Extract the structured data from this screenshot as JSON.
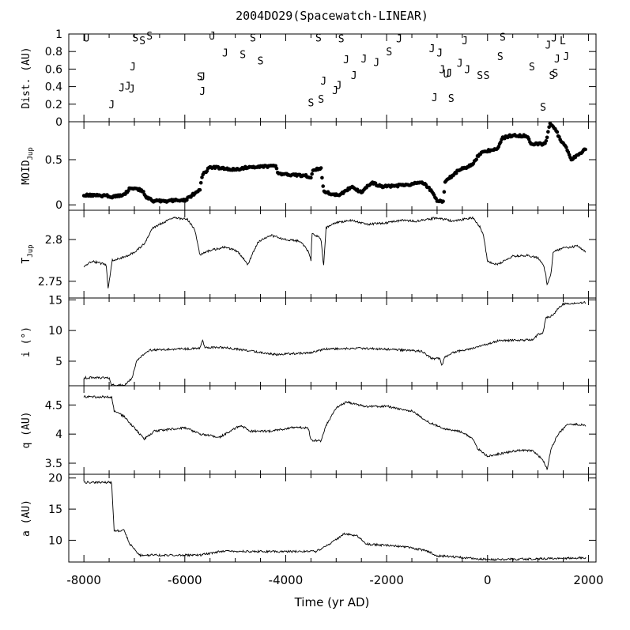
{
  "chart_data": {
    "title": "2004DO29(Spacewatch-LINEAR)",
    "type": "multi-panel",
    "xlabel": "Time (yr AD)",
    "xlim": [
      -8300,
      2150
    ],
    "xticks": [
      -8000,
      -6000,
      -4000,
      -2000,
      0,
      2000
    ],
    "xtick_labels": [
      "-8000",
      "-6000",
      "-4000",
      "-2000",
      "0",
      "2000"
    ],
    "panels": [
      {
        "id": "dist",
        "type": "scatter-text",
        "ylabel": "Dist. (AU)",
        "ylim": [
          0,
          1
        ],
        "yticks": [
          0,
          0.2,
          0.4,
          0.6,
          0.8,
          1
        ],
        "ytick_labels": [
          "0",
          "0.2",
          "0.4",
          "0.6",
          "0.8",
          "1"
        ],
        "points": [
          {
            "t": -7950,
            "d": 0.96,
            "label": "U"
          },
          {
            "t": -7450,
            "d": 0.2,
            "label": "J"
          },
          {
            "t": -7250,
            "d": 0.39,
            "label": "J"
          },
          {
            "t": -7130,
            "d": 0.41,
            "label": "J"
          },
          {
            "t": -7050,
            "d": 0.38,
            "label": "J"
          },
          {
            "t": -7030,
            "d": 0.63,
            "label": "J"
          },
          {
            "t": -6980,
            "d": 0.96,
            "label": "S"
          },
          {
            "t": -6840,
            "d": 0.93,
            "label": "S"
          },
          {
            "t": -6700,
            "d": 0.98,
            "label": "S"
          },
          {
            "t": -5700,
            "d": 0.52,
            "label": "S"
          },
          {
            "t": -5650,
            "d": 0.52,
            "label": "J"
          },
          {
            "t": -5650,
            "d": 0.35,
            "label": "J"
          },
          {
            "t": -5450,
            "d": 0.98,
            "label": "J"
          },
          {
            "t": -5200,
            "d": 0.79,
            "label": "J"
          },
          {
            "t": -4850,
            "d": 0.77,
            "label": "S"
          },
          {
            "t": -4650,
            "d": 0.96,
            "label": "S"
          },
          {
            "t": -4500,
            "d": 0.7,
            "label": "S"
          },
          {
            "t": -3500,
            "d": 0.22,
            "label": "S"
          },
          {
            "t": -3350,
            "d": 0.96,
            "label": "S"
          },
          {
            "t": -3300,
            "d": 0.26,
            "label": "S"
          },
          {
            "t": -3250,
            "d": 0.47,
            "label": "J"
          },
          {
            "t": -3020,
            "d": 0.36,
            "label": "J"
          },
          {
            "t": -2950,
            "d": 0.42,
            "label": "J"
          },
          {
            "t": -2900,
            "d": 0.95,
            "label": "S"
          },
          {
            "t": -2800,
            "d": 0.71,
            "label": "J"
          },
          {
            "t": -2650,
            "d": 0.53,
            "label": "J"
          },
          {
            "t": -2450,
            "d": 0.72,
            "label": "J"
          },
          {
            "t": -2200,
            "d": 0.68,
            "label": "J"
          },
          {
            "t": -1950,
            "d": 0.8,
            "label": "S"
          },
          {
            "t": -1750,
            "d": 0.95,
            "label": "J"
          },
          {
            "t": -1100,
            "d": 0.84,
            "label": "J"
          },
          {
            "t": -1050,
            "d": 0.28,
            "label": "J"
          },
          {
            "t": -950,
            "d": 0.79,
            "label": "J"
          },
          {
            "t": -900,
            "d": 0.6,
            "label": "J"
          },
          {
            "t": -820,
            "d": 0.55,
            "label": "U"
          },
          {
            "t": -760,
            "d": 0.56,
            "label": "J"
          },
          {
            "t": -720,
            "d": 0.27,
            "label": "S"
          },
          {
            "t": -550,
            "d": 0.67,
            "label": "J"
          },
          {
            "t": -450,
            "d": 0.93,
            "label": "J"
          },
          {
            "t": -400,
            "d": 0.6,
            "label": "J"
          },
          {
            "t": -150,
            "d": 0.53,
            "label": "S"
          },
          {
            "t": -20,
            "d": 0.53,
            "label": "S"
          },
          {
            "t": 250,
            "d": 0.75,
            "label": "S"
          },
          {
            "t": 300,
            "d": 0.97,
            "label": "S"
          },
          {
            "t": 880,
            "d": 0.63,
            "label": "S"
          },
          {
            "t": 1100,
            "d": 0.17,
            "label": "S"
          },
          {
            "t": 1200,
            "d": 0.88,
            "label": "J"
          },
          {
            "t": 1280,
            "d": 0.53,
            "label": "S"
          },
          {
            "t": 1320,
            "d": 0.96,
            "label": "J"
          },
          {
            "t": 1340,
            "d": 0.56,
            "label": "S"
          },
          {
            "t": 1380,
            "d": 0.72,
            "label": "J"
          },
          {
            "t": 1490,
            "d": 0.93,
            "label": "L"
          },
          {
            "t": 1560,
            "d": 0.75,
            "label": "J"
          }
        ]
      },
      {
        "id": "moid",
        "type": "scatter",
        "ylabel": "MOID",
        "ylabel_sub": "Jup",
        "ylim": [
          -0.06,
          0.92
        ],
        "yticks": [
          0,
          0.5
        ],
        "ytick_labels": [
          "0",
          "0.5"
        ],
        "knots": [
          [
            -8000,
            0.11
          ],
          [
            -7500,
            0.1
          ],
          [
            -7450,
            0.09
          ],
          [
            -7200,
            0.11
          ],
          [
            -7100,
            0.18
          ],
          [
            -6970,
            0.19
          ],
          [
            -6820,
            0.14
          ],
          [
            -6750,
            0.08
          ],
          [
            -6600,
            0.04
          ],
          [
            -6000,
            0.05
          ],
          [
            -5850,
            0.11
          ],
          [
            -5700,
            0.17
          ],
          [
            -5650,
            0.33
          ],
          [
            -5500,
            0.42
          ],
          [
            -5000,
            0.39
          ],
          [
            -4700,
            0.42
          ],
          [
            -4200,
            0.43
          ],
          [
            -4150,
            0.34
          ],
          [
            -3600,
            0.32
          ],
          [
            -3500,
            0.29
          ],
          [
            -3450,
            0.39
          ],
          [
            -3300,
            0.4
          ],
          [
            -3250,
            0.15
          ],
          [
            -2950,
            0.1
          ],
          [
            -2700,
            0.2
          ],
          [
            -2500,
            0.14
          ],
          [
            -2300,
            0.25
          ],
          [
            -2100,
            0.2
          ],
          [
            -1600,
            0.22
          ],
          [
            -1300,
            0.25
          ],
          [
            -1150,
            0.18
          ],
          [
            -1000,
            0.05
          ],
          [
            -870,
            0.04
          ],
          [
            -850,
            0.25
          ],
          [
            -600,
            0.37
          ],
          [
            -300,
            0.45
          ],
          [
            -150,
            0.57
          ],
          [
            200,
            0.63
          ],
          [
            300,
            0.74
          ],
          [
            500,
            0.77
          ],
          [
            800,
            0.76
          ],
          [
            850,
            0.68
          ],
          [
            1150,
            0.67
          ],
          [
            1230,
            0.9
          ],
          [
            1350,
            0.84
          ],
          [
            1450,
            0.7
          ],
          [
            1550,
            0.65
          ],
          [
            1650,
            0.5
          ],
          [
            1800,
            0.55
          ],
          [
            1950,
            0.62
          ]
        ]
      },
      {
        "id": "tjup",
        "type": "line",
        "ylabel": "T",
        "ylabel_sub": "Jup",
        "ylim": [
          2.73,
          2.835
        ],
        "yticks": [
          2.75,
          2.8
        ],
        "ytick_labels": [
          "2.75",
          "2.8"
        ],
        "knots": [
          [
            -8000,
            2.768
          ],
          [
            -7850,
            2.774
          ],
          [
            -7700,
            2.772
          ],
          [
            -7560,
            2.77
          ],
          [
            -7520,
            2.742
          ],
          [
            -7440,
            2.775
          ],
          [
            -7200,
            2.779
          ],
          [
            -7000,
            2.785
          ],
          [
            -6800,
            2.795
          ],
          [
            -6650,
            2.813
          ],
          [
            -6450,
            2.82
          ],
          [
            -6200,
            2.826
          ],
          [
            -5950,
            2.824
          ],
          [
            -5800,
            2.812
          ],
          [
            -5700,
            2.782
          ],
          [
            -5500,
            2.787
          ],
          [
            -5200,
            2.791
          ],
          [
            -4950,
            2.786
          ],
          [
            -4750,
            2.77
          ],
          [
            -4550,
            2.797
          ],
          [
            -4300,
            2.805
          ],
          [
            -4000,
            2.8
          ],
          [
            -3700,
            2.798
          ],
          [
            -3550,
            2.785
          ],
          [
            -3500,
            2.775
          ],
          [
            -3480,
            2.808
          ],
          [
            -3300,
            2.801
          ],
          [
            -3250,
            2.768
          ],
          [
            -3200,
            2.814
          ],
          [
            -3000,
            2.82
          ],
          [
            -2700,
            2.823
          ],
          [
            -2400,
            2.818
          ],
          [
            -2000,
            2.82
          ],
          [
            -1700,
            2.823
          ],
          [
            -1400,
            2.822
          ],
          [
            -1000,
            2.826
          ],
          [
            -700,
            2.822
          ],
          [
            -300,
            2.826
          ],
          [
            -150,
            2.815
          ],
          [
            -80,
            2.805
          ],
          [
            0,
            2.774
          ],
          [
            200,
            2.77
          ],
          [
            500,
            2.78
          ],
          [
            800,
            2.781
          ],
          [
            1000,
            2.778
          ],
          [
            1100,
            2.77
          ],
          [
            1150,
            2.76
          ],
          [
            1180,
            2.745
          ],
          [
            1260,
            2.76
          ],
          [
            1300,
            2.785
          ],
          [
            1500,
            2.79
          ],
          [
            1800,
            2.792
          ],
          [
            1950,
            2.785
          ]
        ]
      },
      {
        "id": "incl",
        "type": "line",
        "ylabel": "i (°)",
        "ylim": [
          1,
          15.3
        ],
        "yticks": [
          5,
          10,
          15
        ],
        "ytick_labels": [
          "5",
          "10",
          "15"
        ],
        "knots": [
          [
            -8000,
            2.3
          ],
          [
            -7500,
            2.3
          ],
          [
            -7450,
            1.1
          ],
          [
            -7200,
            1.1
          ],
          [
            -7050,
            2.2
          ],
          [
            -6950,
            5.2
          ],
          [
            -6700,
            6.8
          ],
          [
            -5700,
            7.1
          ],
          [
            -5650,
            8.4
          ],
          [
            -5600,
            7.2
          ],
          [
            -5300,
            7.3
          ],
          [
            -4900,
            6.9
          ],
          [
            -4200,
            6.1
          ],
          [
            -3500,
            6.4
          ],
          [
            -3200,
            7
          ],
          [
            -2500,
            7.1
          ],
          [
            -1850,
            6.9
          ],
          [
            -1300,
            6.6
          ],
          [
            -1100,
            5.4
          ],
          [
            -950,
            5.5
          ],
          [
            -900,
            4.3
          ],
          [
            -850,
            5.6
          ],
          [
            -700,
            6.4
          ],
          [
            -300,
            7.1
          ],
          [
            200,
            8.3
          ],
          [
            500,
            8.4
          ],
          [
            900,
            8.5
          ],
          [
            1000,
            9.4
          ],
          [
            1100,
            9.5
          ],
          [
            1150,
            12
          ],
          [
            1300,
            12.5
          ],
          [
            1400,
            13.6
          ],
          [
            1500,
            14.3
          ],
          [
            1950,
            14.6
          ]
        ]
      },
      {
        "id": "peri",
        "type": "line",
        "ylabel": "q (AU)",
        "ylim": [
          3.31,
          4.83
        ],
        "yticks": [
          3.5,
          4,
          4.5
        ],
        "ytick_labels": [
          "3.5",
          "4",
          "4.5"
        ],
        "knots": [
          [
            -8000,
            4.64
          ],
          [
            -7450,
            4.64
          ],
          [
            -7400,
            4.4
          ],
          [
            -7200,
            4.3
          ],
          [
            -7050,
            4.15
          ],
          [
            -6800,
            3.92
          ],
          [
            -6600,
            4.05
          ],
          [
            -6000,
            4.11
          ],
          [
            -5700,
            4.0
          ],
          [
            -5300,
            3.95
          ],
          [
            -4900,
            4.15
          ],
          [
            -4700,
            4.05
          ],
          [
            -4300,
            4.05
          ],
          [
            -3800,
            4.12
          ],
          [
            -3550,
            4.1
          ],
          [
            -3500,
            3.9
          ],
          [
            -3300,
            3.88
          ],
          [
            -3200,
            4.15
          ],
          [
            -3000,
            4.45
          ],
          [
            -2800,
            4.55
          ],
          [
            -2400,
            4.47
          ],
          [
            -2000,
            4.48
          ],
          [
            -1700,
            4.42
          ],
          [
            -1500,
            4.4
          ],
          [
            -1200,
            4.22
          ],
          [
            -900,
            4.1
          ],
          [
            -550,
            4.05
          ],
          [
            -300,
            3.93
          ],
          [
            -200,
            3.75
          ],
          [
            0,
            3.62
          ],
          [
            600,
            3.72
          ],
          [
            900,
            3.72
          ],
          [
            1100,
            3.55
          ],
          [
            1180,
            3.4
          ],
          [
            1260,
            3.75
          ],
          [
            1400,
            4.0
          ],
          [
            1600,
            4.18
          ],
          [
            1950,
            4.15
          ]
        ]
      },
      {
        "id": "semi",
        "type": "line",
        "ylabel": "a (AU)",
        "ylim": [
          6.5,
          20.6
        ],
        "yticks": [
          10,
          15,
          20
        ],
        "ytick_labels": [
          "10",
          "15",
          "20"
        ],
        "knots": [
          [
            -8000,
            19.3
          ],
          [
            -7450,
            19.3
          ],
          [
            -7400,
            11.5
          ],
          [
            -7200,
            11.6
          ],
          [
            -7100,
            9.5
          ],
          [
            -6900,
            7.6
          ],
          [
            -5700,
            7.6
          ],
          [
            -5300,
            8.2
          ],
          [
            -4000,
            8.2
          ],
          [
            -3400,
            8.2
          ],
          [
            -3100,
            9.5
          ],
          [
            -2850,
            11
          ],
          [
            -2600,
            10.8
          ],
          [
            -2400,
            9.4
          ],
          [
            -1700,
            9.0
          ],
          [
            -1200,
            8.3
          ],
          [
            -1000,
            7.5
          ],
          [
            -800,
            7.4
          ],
          [
            0,
            6.9
          ],
          [
            1000,
            7.0
          ],
          [
            1950,
            7.2
          ]
        ]
      }
    ]
  }
}
